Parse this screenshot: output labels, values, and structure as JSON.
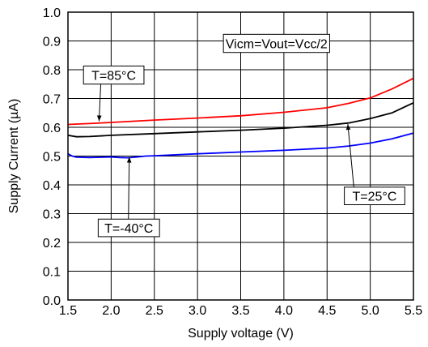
{
  "chart_data": {
    "type": "line",
    "xlabel": "Supply voltage (V)",
    "ylabel": "Supply Current (µA)",
    "xlim": [
      1.5,
      5.5
    ],
    "ylim": [
      0.0,
      1.0
    ],
    "x_ticks": [
      1.5,
      2.0,
      2.5,
      3.0,
      3.5,
      4.0,
      4.5,
      5.0,
      5.5
    ],
    "x_tick_labels": [
      "1.5",
      "2.0",
      "2.5",
      "3.0",
      "3.5",
      "4.0",
      "4.5",
      "5.0",
      "5.5"
    ],
    "y_ticks": [
      0.0,
      0.1,
      0.2,
      0.3,
      0.4,
      0.5,
      0.6,
      0.7,
      0.8,
      0.9,
      1.0
    ],
    "y_tick_labels": [
      "0.0",
      "0.1",
      "0.2",
      "0.3",
      "0.4",
      "0.5",
      "0.6",
      "0.7",
      "0.8",
      "0.9",
      "1.0"
    ],
    "grid": true,
    "series": [
      {
        "label": "T=85°C",
        "color": "#ff0000",
        "x": [
          1.5,
          1.75,
          2.0,
          2.5,
          3.0,
          3.5,
          4.0,
          4.5,
          4.75,
          5.0,
          5.25,
          5.5
        ],
        "y": [
          0.61,
          0.613,
          0.617,
          0.625,
          0.632,
          0.64,
          0.652,
          0.668,
          0.683,
          0.702,
          0.733,
          0.77
        ]
      },
      {
        "label": "T=25°C",
        "color": "#000000",
        "x": [
          1.5,
          1.6,
          1.75,
          2.0,
          2.5,
          3.0,
          3.5,
          4.0,
          4.5,
          4.75,
          5.0,
          5.25,
          5.5
        ],
        "y": [
          0.572,
          0.567,
          0.568,
          0.572,
          0.578,
          0.584,
          0.59,
          0.597,
          0.607,
          0.615,
          0.63,
          0.65,
          0.685
        ]
      },
      {
        "label": "T=-40°C",
        "color": "#0000ff",
        "x": [
          1.5,
          1.55,
          1.6,
          1.75,
          2.0,
          2.1,
          2.2,
          2.3,
          2.4,
          2.5,
          3.0,
          3.5,
          4.0,
          4.5,
          4.75,
          5.0,
          5.25,
          5.5
        ],
        "y": [
          0.508,
          0.5,
          0.496,
          0.495,
          0.497,
          0.495,
          0.494,
          0.497,
          0.5,
          0.501,
          0.508,
          0.514,
          0.52,
          0.528,
          0.535,
          0.545,
          0.56,
          0.58
        ]
      }
    ],
    "annotations": [
      {
        "text": "T=85°C",
        "series": 0,
        "box": {
          "x1": 1.68,
          "x2": 2.38,
          "y1": 0.813,
          "y2": 0.75
        },
        "arrow": {
          "from": [
            1.88,
            0.75
          ],
          "to": [
            1.86,
            0.621
          ]
        }
      },
      {
        "text": "T=25°C",
        "series": 1,
        "box": {
          "x1": 4.7,
          "x2": 5.4,
          "y1": 0.392,
          "y2": 0.331
        },
        "arrow": {
          "from": [
            4.81,
            0.392
          ],
          "to": [
            4.74,
            0.611
          ]
        }
      },
      {
        "text": "T=-40°C",
        "series": 2,
        "box": {
          "x1": 1.85,
          "x2": 2.56,
          "y1": 0.281,
          "y2": 0.22
        },
        "arrow": {
          "from": [
            2.2,
            0.281
          ],
          "to": [
            2.21,
            0.497
          ]
        }
      },
      {
        "text": "Vicm=Vout=Vcc/2",
        "series": null,
        "box": {
          "x1": 3.3,
          "x2": 4.53,
          "y1": 0.923,
          "y2": 0.86
        },
        "arrow": null
      }
    ]
  }
}
